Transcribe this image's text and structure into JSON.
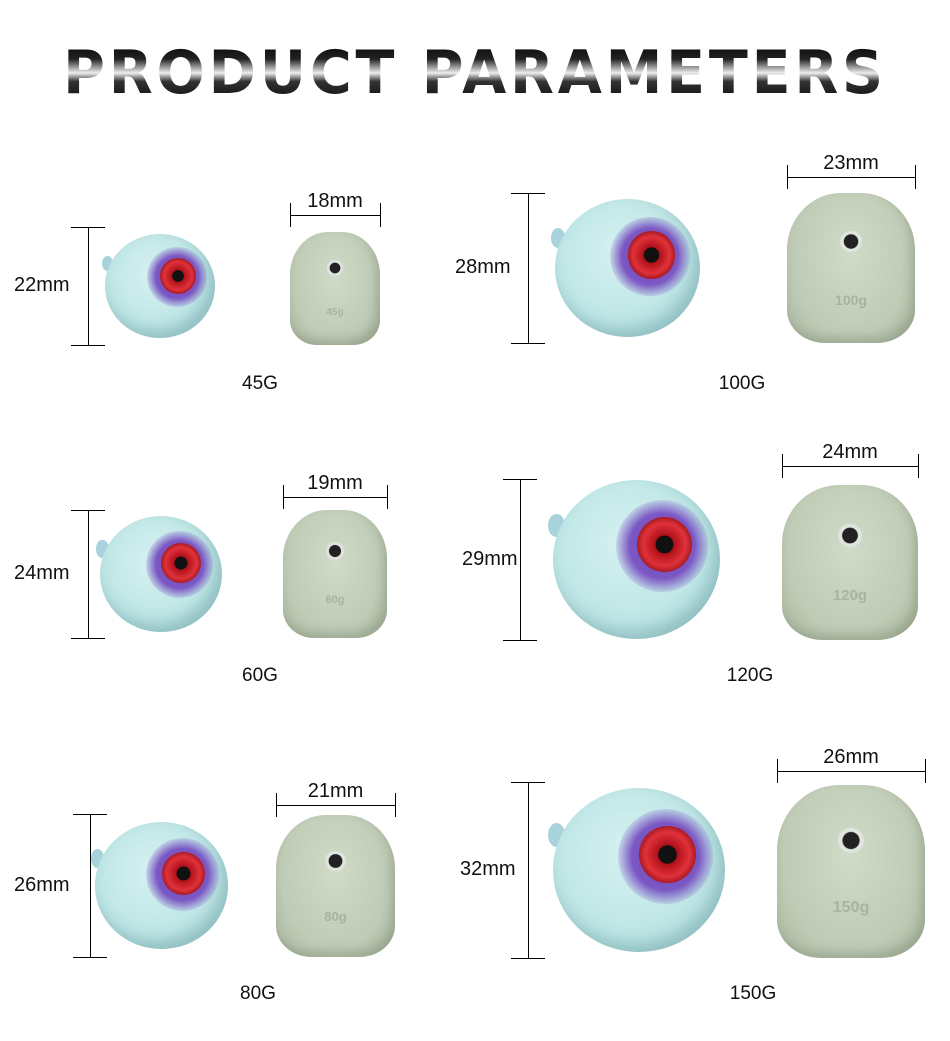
{
  "title": "PRODUCT   PARAMETERS",
  "colors": {
    "ball": "#c8ecec",
    "eye_patch": "#6c45b8",
    "eye": "#e0323a",
    "front_body": "#c5d2bd"
  },
  "items": [
    {
      "weight_label": "45G",
      "height": "22mm",
      "width": "18mm",
      "embossed": "45g"
    },
    {
      "weight_label": "100G",
      "height": "28mm",
      "width": "23mm",
      "embossed": "100g"
    },
    {
      "weight_label": "60G",
      "height": "24mm",
      "width": "19mm",
      "embossed": "60g"
    },
    {
      "weight_label": "120G",
      "height": "29mm",
      "width": "24mm",
      "embossed": "120g"
    },
    {
      "weight_label": "80G",
      "height": "26mm",
      "width": "21mm",
      "embossed": "80g"
    },
    {
      "weight_label": "150G",
      "height": "32mm",
      "width": "26mm",
      "embossed": "150g"
    }
  ]
}
